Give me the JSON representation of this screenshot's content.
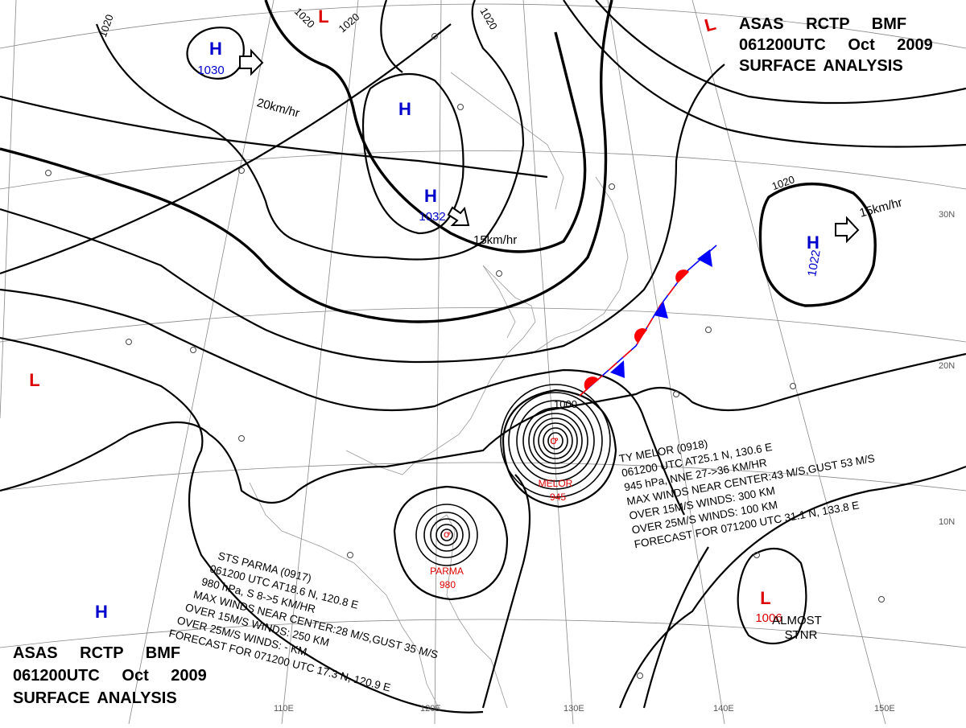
{
  "header": {
    "lines": [
      "ASAS RCTP BMF",
      "061200UTC Oct 2009",
      "SURFACE ANALYSIS"
    ]
  },
  "centers": [
    {
      "label": "H",
      "value": 1030
    },
    {
      "label": "H"
    },
    {
      "label": "H",
      "value": 1032
    },
    {
      "label": "H",
      "value": 1022
    },
    {
      "label": "L"
    },
    {
      "label": "L"
    },
    {
      "label": "L"
    },
    {
      "label": "H"
    },
    {
      "label": "L",
      "value": 1006
    }
  ],
  "isobar_labels": [
    1020,
    1020,
    1020,
    1020,
    1020,
    1000
  ],
  "motion_labels": [
    "20km/hr",
    "15km/hr",
    "15km/hr"
  ],
  "note": [
    "ALMOST",
    "STNR"
  ],
  "typhoons": [
    {
      "name": "MELOR",
      "pressure": 945,
      "info": [
        "TY MELOR (0918)",
        "061200 UTC AT25.1 N, 130.6 E",
        "945 hPa, NNE 27->36 KM/HR",
        "MAX WINDS NEAR CENTER:43 M/S,GUST 53 M/S",
        "OVER 15M/S WINDS: 300 KM",
        "OVER 25M/S WINDS: 100 KM",
        "FORECAST FOR 071200 UTC 31.1 N, 133.8 E"
      ]
    },
    {
      "name": "PARMA",
      "pressure": 980,
      "info": [
        "STS PARMA (0917)",
        "061200 UTC AT18.6 N, 120.8 E",
        "980 hPa, S 8->5 KM/HR",
        "MAX WINDS NEAR CENTER:28 M/S,GUST 35 M/S",
        "OVER 15M/S WINDS: 250 KM",
        "OVER 25M/S WINDS: - KM",
        "FORECAST FOR 071200 UTC 17.3 N, 120.9 E"
      ]
    }
  ],
  "grid_labels": {
    "lat": [
      "10N",
      "20N",
      "30N"
    ],
    "lon": [
      "110E",
      "120E",
      "130E",
      "140E",
      "150E"
    ]
  }
}
